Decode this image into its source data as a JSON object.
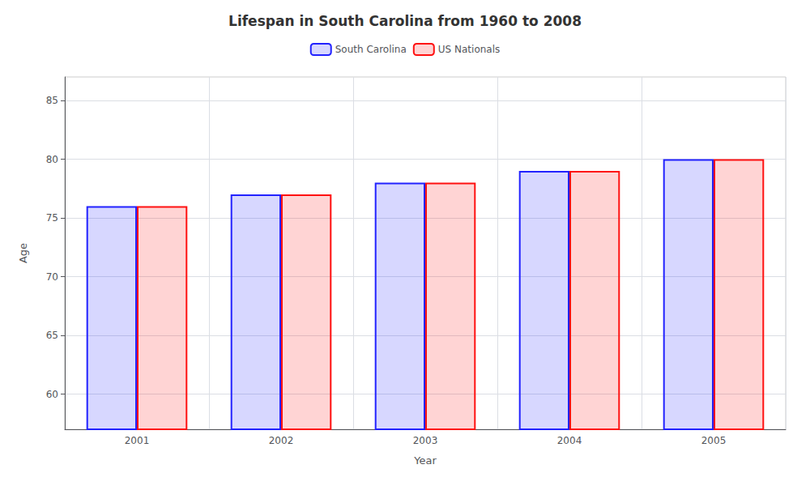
{
  "chart_data": {
    "type": "bar",
    "title": "Lifespan in South Carolina from 1960 to 2008",
    "xlabel": "Year",
    "ylabel": "Age",
    "categories": [
      "2001",
      "2002",
      "2003",
      "2004",
      "2005"
    ],
    "series": [
      {
        "name": "South Carolina",
        "color": "#2222ff",
        "values": [
          76,
          77,
          78,
          79,
          80
        ]
      },
      {
        "name": "US Nationals",
        "color": "#ff1111",
        "values": [
          76,
          77,
          78,
          79,
          80
        ]
      }
    ],
    "ylim": [
      57,
      87
    ],
    "yticks": [
      60,
      65,
      70,
      75,
      80,
      85
    ],
    "grid": true,
    "legend": "top"
  }
}
